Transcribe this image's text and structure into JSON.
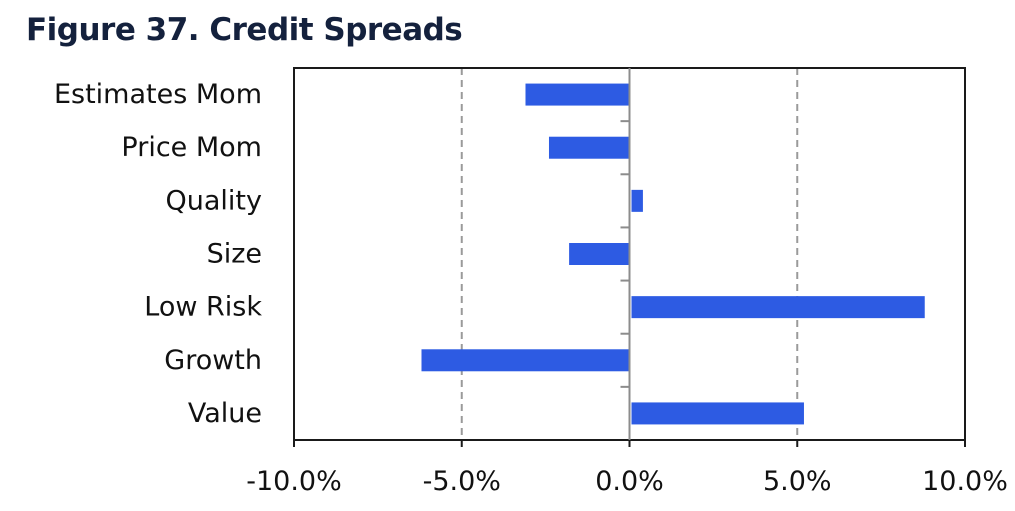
{
  "header": {
    "title": "Figure 37. Credit Spreads"
  },
  "chart_data": {
    "type": "bar",
    "orientation": "horizontal",
    "title": "Figure 37. Credit Spreads",
    "xlabel": "",
    "ylabel": "",
    "categories": [
      "Estimates Mom",
      "Price Mom",
      "Quality",
      "Size",
      "Low Risk",
      "Growth",
      "Value"
    ],
    "values": [
      -3.1,
      -2.4,
      0.4,
      -1.8,
      8.8,
      -6.2,
      5.2
    ],
    "value_unit": "%",
    "xlim": [
      -10.0,
      10.0
    ],
    "xticks": [
      -10.0,
      -5.0,
      0.0,
      5.0,
      10.0
    ],
    "xtick_labels": [
      "-10.0%",
      "-5.0%",
      "0.0%",
      "5.0%",
      "10.0%"
    ],
    "grid": "vertical dashed at major ticks",
    "legend": "none",
    "bar_color": "#2d5be3"
  }
}
